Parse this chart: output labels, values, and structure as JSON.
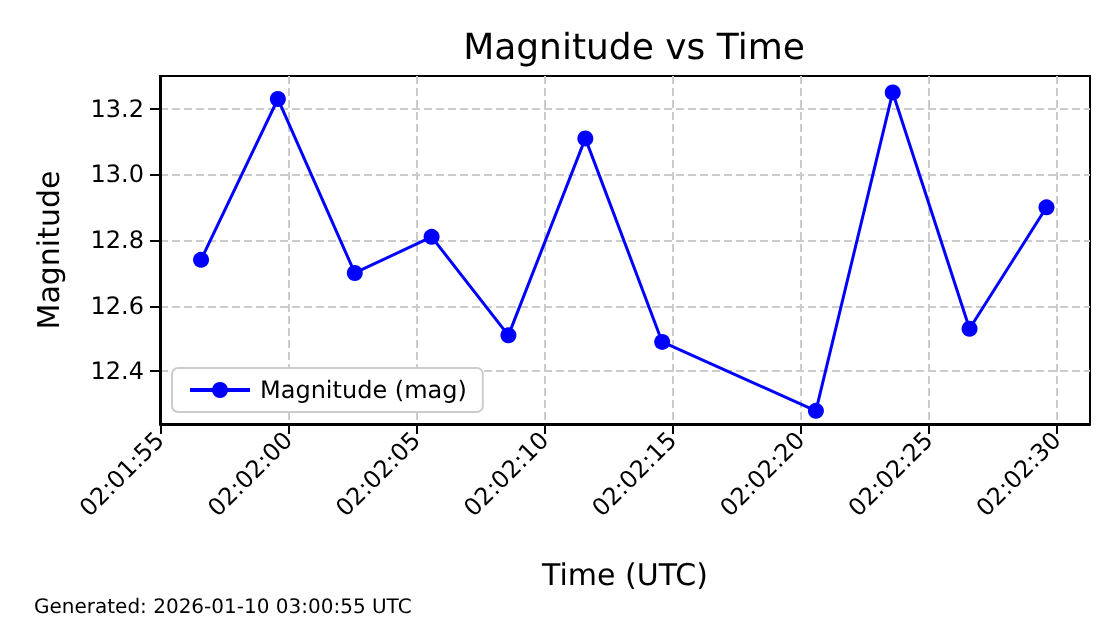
{
  "chart_data": {
    "type": "line",
    "title": "Magnitude vs Time",
    "xlabel": "Time (UTC)",
    "ylabel": "Magnitude",
    "annotations": [
      "Generated: 2026-01-10 03:00:55 UTC"
    ],
    "x": [
      2.032389,
      2.033222,
      2.034056,
      2.034889,
      2.035722,
      2.036556,
      2.037389,
      2.039056,
      2.039889,
      2.040722,
      2.041556
    ],
    "series": [
      {
        "name": "Magnitude (mag)",
        "color": "#0000ff",
        "values": [
          12.74,
          13.23,
          12.7,
          12.81,
          12.51,
          13.11,
          12.49,
          12.28,
          13.25,
          12.53,
          12.9
        ]
      }
    ],
    "xlim": [
      2.031944,
      2.042028
    ],
    "xticks": [
      {
        "value": 2.031944,
        "label": "02:01:55"
      },
      {
        "value": 2.033333,
        "label": "02:02:00"
      },
      {
        "value": 2.034722,
        "label": "02:02:05"
      },
      {
        "value": 2.036111,
        "label": "02:02:10"
      },
      {
        "value": 2.0375,
        "label": "02:02:15"
      },
      {
        "value": 2.038889,
        "label": "02:02:20"
      },
      {
        "value": 2.040278,
        "label": "02:02:25"
      },
      {
        "value": 2.041667,
        "label": "02:02:30"
      }
    ],
    "ylim": [
      12.24,
      13.3
    ],
    "yticks": [
      {
        "value": 12.4,
        "label": "12.4"
      },
      {
        "value": 12.6,
        "label": "12.6"
      },
      {
        "value": 12.8,
        "label": "12.8"
      },
      {
        "value": 13,
        "label": "13.0"
      },
      {
        "value": 13.2,
        "label": "13.2"
      }
    ],
    "grid": true,
    "legend": "bottom left",
    "marker": "circle",
    "line_style": "solid"
  }
}
